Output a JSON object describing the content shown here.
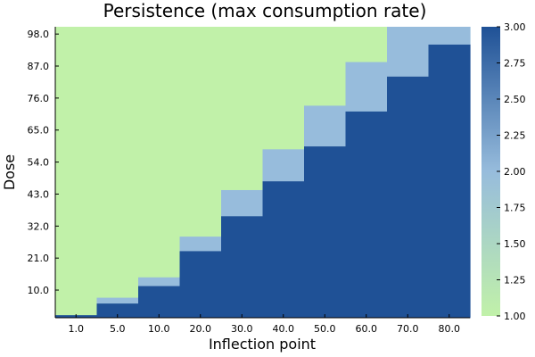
{
  "chart_data": {
    "type": "heatmap",
    "title": "Persistence (max consumption rate)",
    "xlabel": "Inflection point",
    "ylabel": "Dose",
    "x_categories": [
      "1.0",
      "5.0",
      "10.0",
      "20.0",
      "30.0",
      "40.0",
      "50.0",
      "60.0",
      "70.0",
      "80.0"
    ],
    "y_tick_labels": [
      "10.0",
      "21.0",
      "32.0",
      "43.0",
      "54.0",
      "65.0",
      "76.0",
      "87.0",
      "98.0"
    ],
    "y_range": [
      1,
      100
    ],
    "columns": [
      {
        "x": "1.0",
        "value3_max_dose": 1,
        "value2_max_dose": 1
      },
      {
        "x": "5.0",
        "value3_max_dose": 5,
        "value2_max_dose": 7
      },
      {
        "x": "10.0",
        "value3_max_dose": 11,
        "value2_max_dose": 14
      },
      {
        "x": "20.0",
        "value3_max_dose": 23,
        "value2_max_dose": 28
      },
      {
        "x": "30.0",
        "value3_max_dose": 35,
        "value2_max_dose": 44
      },
      {
        "x": "40.0",
        "value3_max_dose": 47,
        "value2_max_dose": 58
      },
      {
        "x": "50.0",
        "value3_max_dose": 59,
        "value2_max_dose": 73
      },
      {
        "x": "60.0",
        "value3_max_dose": 71,
        "value2_max_dose": 88
      },
      {
        "x": "70.0",
        "value3_max_dose": 83,
        "value2_max_dose": 100
      },
      {
        "x": "80.0",
        "value3_max_dose": 94,
        "value2_max_dose": 100
      }
    ],
    "value_levels": [
      1,
      2,
      3
    ],
    "colors": {
      "1": "#c1f1a9",
      "2": "#97bcdc",
      "3": "#1f5196"
    },
    "colorbar": {
      "min": 1.0,
      "max": 3.0,
      "ticks": [
        "1.00",
        "1.25",
        "1.50",
        "1.75",
        "2.00",
        "2.25",
        "2.50",
        "2.75",
        "3.00"
      ],
      "gradient_stops": [
        "#c1f1a9",
        "#97bcdc",
        "#1f5196"
      ]
    },
    "grid": false
  }
}
